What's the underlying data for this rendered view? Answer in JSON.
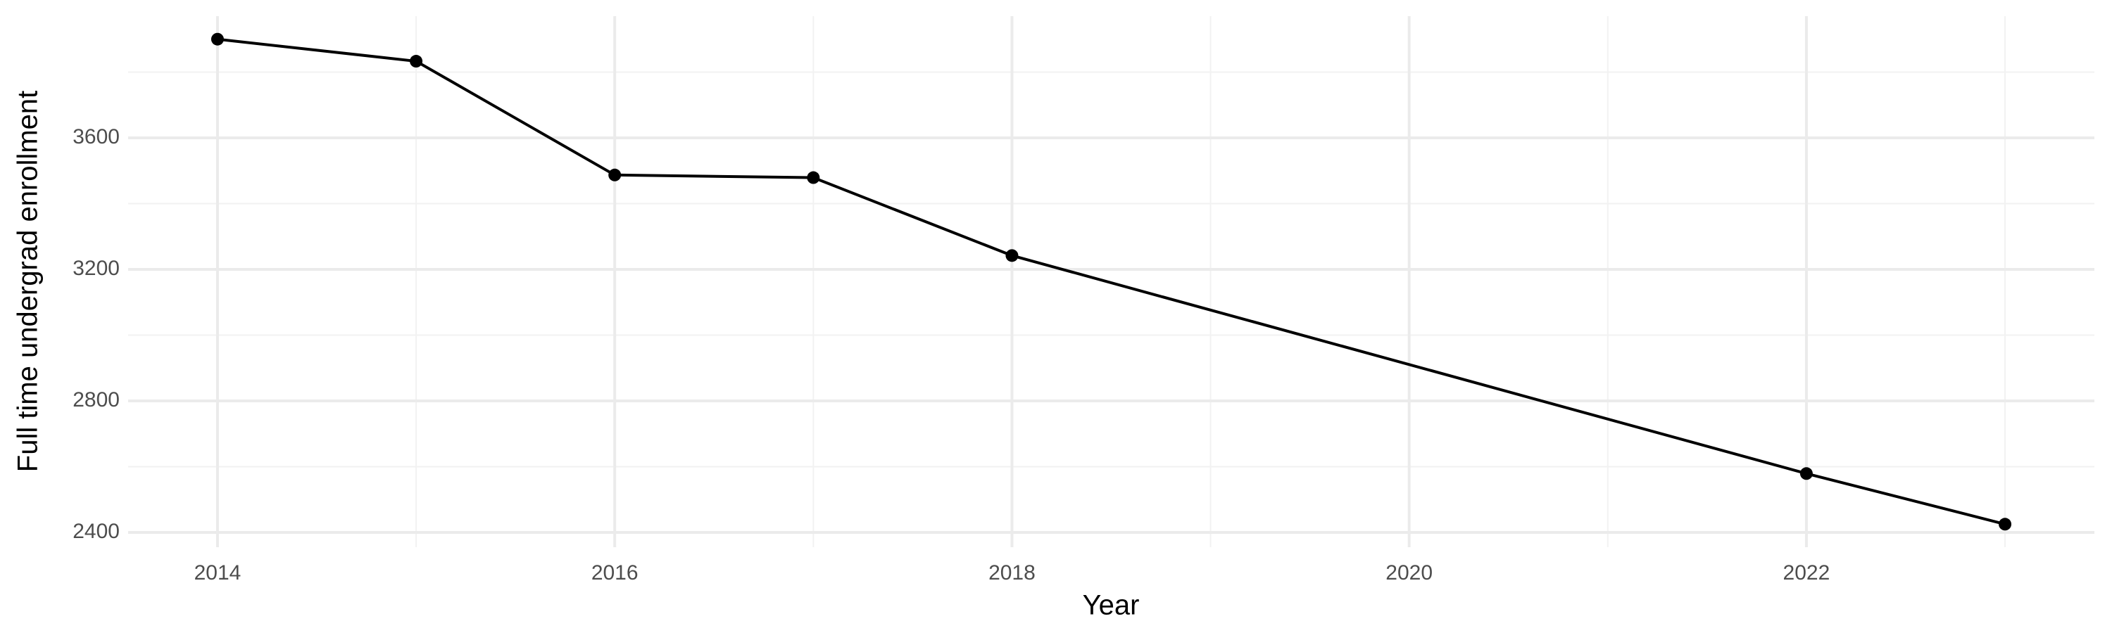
{
  "chart_data": {
    "type": "line",
    "x_label": "Year",
    "y_label": "Full time undergrad enrollment",
    "x": [
      2014,
      2015,
      2016,
      2017,
      2018,
      2022,
      2023
    ],
    "series": [
      {
        "name": "Full time undergrad enrollment",
        "color": "#000000",
        "values": [
          3900,
          3833,
          3487,
          3479,
          3242,
          2579,
          2425
        ]
      }
    ],
    "xlim": [
      2013.55,
      2023.45
    ],
    "xticks": [
      2014,
      2016,
      2018,
      2020,
      2022
    ],
    "minor_xticks": [
      2015,
      2017,
      2019,
      2021,
      2023
    ],
    "ylim": [
      2355,
      3970
    ],
    "yticks": [
      2400,
      2800,
      3200,
      3600
    ],
    "minor_yticks": [
      2600,
      3000,
      3400,
      3800
    ],
    "grid": true
  }
}
